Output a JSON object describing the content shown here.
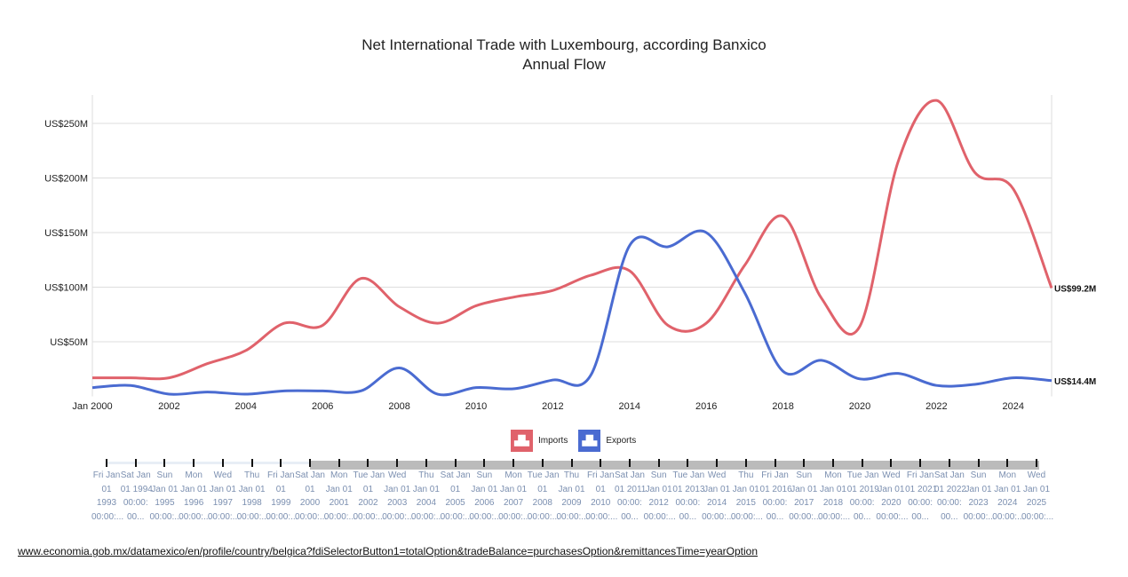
{
  "chart_data": {
    "type": "line",
    "title": "Net International Trade with Luxembourg, according Banxico",
    "subtitle": "Annual Flow",
    "x": [
      2000,
      2001,
      2002,
      2003,
      2004,
      2005,
      2006,
      2007,
      2008,
      2009,
      2010,
      2011,
      2012,
      2013,
      2014,
      2015,
      2016,
      2017,
      2018,
      2019,
      2020,
      2021,
      2022,
      2023,
      2024,
      2025
    ],
    "x_tick_labels": [
      "Jan 2000",
      "2002",
      "2004",
      "2006",
      "2008",
      "2010",
      "2012",
      "2014",
      "2016",
      "2018",
      "2020",
      "2022",
      "2024"
    ],
    "y_tick_labels": [
      "US$50M",
      "US$100M",
      "US$150M",
      "US$200M",
      "US$250M"
    ],
    "y_ticks": [
      50,
      100,
      150,
      200,
      250
    ],
    "ylim": [
      0,
      280
    ],
    "xlim": [
      2000,
      2025
    ],
    "grid": true,
    "legend_position": "bottom",
    "series": [
      {
        "name": "Imports",
        "color": "#e0626b",
        "values": [
          17,
          17,
          17,
          30,
          42,
          67,
          65,
          108,
          82,
          67,
          83,
          91,
          97,
          111,
          115,
          65,
          67,
          120,
          165,
          90,
          64,
          215,
          271,
          205,
          190,
          99.2
        ],
        "end_label": "US$99.2M"
      },
      {
        "name": "Exports",
        "color": "#4a6bd1",
        "values": [
          8,
          10,
          2,
          4,
          2,
          5,
          5,
          5,
          26,
          2,
          8,
          7,
          15,
          20,
          138,
          137,
          150,
          95,
          23,
          33,
          16,
          21,
          10,
          11,
          17,
          14.4
        ],
        "end_label": "US$14.4M"
      }
    ]
  },
  "legend": {
    "icon": "ship-icon"
  },
  "timeline": {
    "ticks": [
      [
        "Fri Jan",
        "01",
        "1993",
        "00:00:..."
      ],
      [
        "Sat Jan",
        "01 1994",
        "00:00:",
        "00..."
      ],
      [
        "Sun",
        "Jan 01",
        "1995",
        "00:00:..."
      ],
      [
        "Mon",
        "Jan 01",
        "1996",
        "00:00:..."
      ],
      [
        "Wed",
        "Jan 01",
        "1997",
        "00:00:..."
      ],
      [
        "Thu",
        "Jan 01",
        "1998",
        "00:00:..."
      ],
      [
        "Fri Jan",
        "01",
        "1999",
        "00:00:..."
      ],
      [
        "Sat Jan",
        "01",
        "2000",
        "00:00:..."
      ],
      [
        "Mon",
        "Jan 01",
        "2001",
        "00:00:..."
      ],
      [
        "Tue Jan",
        "01",
        "2002",
        "00:00:..."
      ],
      [
        "Wed",
        "Jan 01",
        "2003",
        "00:00:..."
      ],
      [
        "Thu",
        "Jan 01",
        "2004",
        "00:00:..."
      ],
      [
        "Sat Jan",
        "01",
        "2005",
        "00:00:..."
      ],
      [
        "Sun",
        "Jan 01",
        "2006",
        "00:00:..."
      ],
      [
        "Mon",
        "Jan 01",
        "2007",
        "00:00:..."
      ],
      [
        "Tue Jan",
        "01",
        "2008",
        "00:00:..."
      ],
      [
        "Thu",
        "Jan 01",
        "2009",
        "00:00:..."
      ],
      [
        "Fri Jan",
        "01",
        "2010",
        "00:00:..."
      ],
      [
        "Sat Jan",
        "01 2011",
        "00:00:",
        "00..."
      ],
      [
        "Sun",
        "Jan 01",
        "2012",
        "00:00:..."
      ],
      [
        "Tue Jan",
        "01 2013",
        "00:00:",
        "00..."
      ],
      [
        "Wed",
        "Jan 01",
        "2014",
        "00:00:..."
      ],
      [
        "Thu",
        "Jan 01",
        "2015",
        "00:00:..."
      ],
      [
        "Fri Jan",
        "01 2016",
        "00:00:",
        "00..."
      ],
      [
        "Sun",
        "Jan 01",
        "2017",
        "00:00:..."
      ],
      [
        "Mon",
        "Jan 01",
        "2018",
        "00:00:..."
      ],
      [
        "Tue Jan",
        "01 2019",
        "00:00:",
        "00..."
      ],
      [
        "Wed",
        "Jan 01",
        "2020",
        "00:00:..."
      ],
      [
        "Fri Jan",
        "01 2021",
        "00:00:",
        "00..."
      ],
      [
        "Sat Jan",
        "01 2022",
        "00:00:",
        "00..."
      ],
      [
        "Sun",
        "Jan 01",
        "2023",
        "00:00:..."
      ],
      [
        "Mon",
        "Jan 01",
        "2024",
        "00:00:..."
      ],
      [
        "Wed",
        "Jan 01",
        "2025",
        "00:00:..."
      ]
    ],
    "selected_start": 2000,
    "selected_end": 2025
  },
  "footer": {
    "url_text": "www.economia.gob.mx/datamexico/en/profile/country/belgica?fdiSelectorButton1=totalOption&tradeBalance=purchasesOption&remittancesTime=yearOption"
  }
}
